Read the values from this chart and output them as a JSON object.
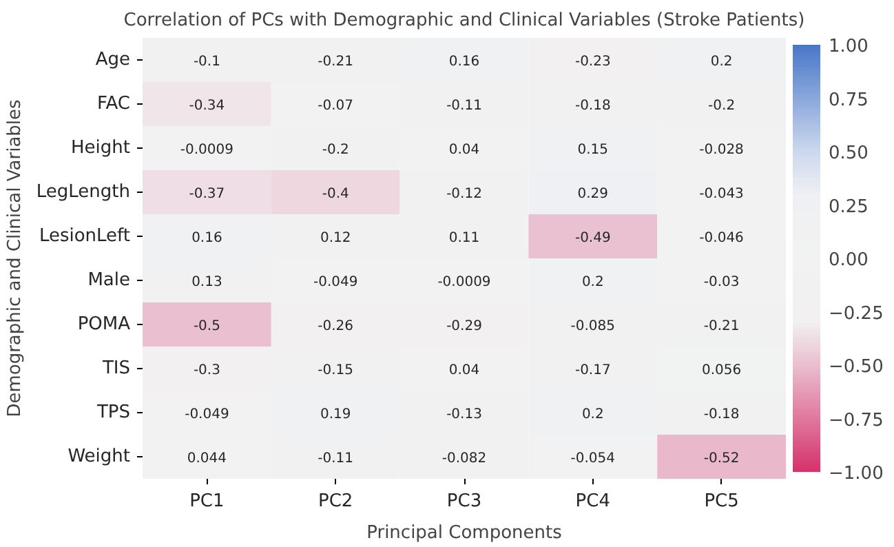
{
  "chart_data": {
    "type": "heatmap",
    "title": "Correlation of PCs with Demographic and Clinical Variables (Stroke Patients)",
    "xlabel": "Principal Components",
    "ylabel": "Demographic and Clinical Variables",
    "categories": [
      "PC1",
      "PC2",
      "PC3",
      "PC4",
      "PC5"
    ],
    "y_categories": [
      "Age",
      "FAC",
      "Height",
      "LegLength",
      "LesionLeft",
      "Male",
      "POMA",
      "TIS",
      "TPS",
      "Weight"
    ],
    "cells": [
      [
        -0.1,
        -0.21,
        0.16,
        -0.23,
        0.2
      ],
      [
        -0.34,
        -0.07,
        -0.11,
        -0.18,
        -0.2
      ],
      [
        -0.0009,
        -0.2,
        0.04,
        0.15,
        -0.028
      ],
      [
        -0.37,
        -0.4,
        -0.12,
        0.29,
        -0.043
      ],
      [
        0.16,
        0.12,
        0.11,
        -0.49,
        -0.046
      ],
      [
        0.13,
        -0.049,
        -0.0009,
        0.2,
        -0.03
      ],
      [
        -0.5,
        -0.26,
        -0.29,
        -0.085,
        -0.21
      ],
      [
        -0.3,
        -0.15,
        0.04,
        -0.17,
        0.056
      ],
      [
        -0.049,
        0.19,
        -0.13,
        0.2,
        -0.18
      ],
      [
        0.044,
        -0.11,
        -0.082,
        -0.054,
        -0.52
      ]
    ],
    "data_labels": true,
    "clim": [
      -1,
      1
    ],
    "cticks": [
      {
        "value": -1,
        "label": "−1.00"
      },
      {
        "value": -0.75,
        "label": "−0.75"
      },
      {
        "value": -0.5,
        "label": "−0.50"
      },
      {
        "value": -0.25,
        "label": "−0.25"
      },
      {
        "value": 0,
        "label": "0.00"
      },
      {
        "value": 0.25,
        "label": "0.25"
      },
      {
        "value": 0.5,
        "label": "0.50"
      },
      {
        "value": 0.75,
        "label": "0.75"
      },
      {
        "value": 1,
        "label": "1.00"
      }
    ]
  }
}
